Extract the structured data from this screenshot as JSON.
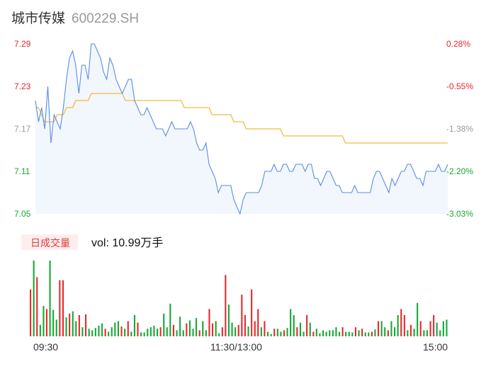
{
  "header": {
    "stock_name": "城市传媒",
    "stock_code": "600229.SH"
  },
  "colors": {
    "up": "#e8282b",
    "down": "#16a836",
    "price_line": "#5b8de0",
    "avg_line": "#f4bb3c",
    "area_fill": "#f2f6fd",
    "neutral_label": "#999999"
  },
  "chart_data": {
    "type": "line",
    "prev_close": 7.2,
    "y_axis_left": [
      "7.29",
      "7.23",
      "7.17",
      "7.11",
      "7.05"
    ],
    "y_axis_right": [
      "0.28%",
      "-0.55%",
      "-1.38%",
      "-2.20%",
      "-3.03%"
    ],
    "ylim": [
      7.05,
      7.29
    ],
    "x_ticks": [
      "09:30",
      "11:30/13:00",
      "15:00"
    ],
    "series": [
      {
        "key": "price",
        "values": [
          7.21,
          7.18,
          7.2,
          7.17,
          7.23,
          7.15,
          7.19,
          7.18,
          7.17,
          7.2,
          7.24,
          7.27,
          7.28,
          7.26,
          7.22,
          7.26,
          7.26,
          7.24,
          7.29,
          7.29,
          7.28,
          7.27,
          7.25,
          7.24,
          7.27,
          7.26,
          7.24,
          7.23,
          7.22,
          7.23,
          7.24,
          7.24,
          7.21,
          7.2,
          7.19,
          7.19,
          7.2,
          7.19,
          7.18,
          7.17,
          7.17,
          7.17,
          7.16,
          7.17,
          7.18,
          7.17,
          7.17,
          7.17,
          7.17,
          7.17,
          7.18,
          7.17,
          7.15,
          7.14,
          7.14,
          7.15,
          7.12,
          7.11,
          7.1,
          7.08,
          7.09,
          7.09,
          7.09,
          7.09,
          7.07,
          7.06,
          7.05,
          7.07,
          7.08,
          7.08,
          7.08,
          7.08,
          7.08,
          7.09,
          7.11,
          7.11,
          7.11,
          7.12,
          7.11,
          7.11,
          7.12,
          7.12,
          7.11,
          7.11,
          7.12,
          7.12,
          7.12,
          7.11,
          7.12,
          7.12,
          7.1,
          7.1,
          7.09,
          7.1,
          7.11,
          7.11,
          7.1,
          7.09,
          7.09,
          7.08,
          7.08,
          7.08,
          7.08,
          7.09,
          7.08,
          7.08,
          7.08,
          7.08,
          7.08,
          7.1,
          7.11,
          7.11,
          7.1,
          7.09,
          7.08,
          7.1,
          7.09,
          7.1,
          7.11,
          7.11,
          7.12,
          7.12,
          7.11,
          7.1,
          7.1,
          7.09,
          7.11,
          7.11,
          7.11,
          7.11,
          7.12,
          7.11,
          7.11,
          7.12
        ]
      },
      {
        "key": "average",
        "values": [
          7.2,
          7.2,
          7.19,
          7.18,
          7.18,
          7.18,
          7.18,
          7.19,
          7.19,
          7.19,
          7.2,
          7.2,
          7.2,
          7.21,
          7.21,
          7.21,
          7.21,
          7.21,
          7.22,
          7.22,
          7.22,
          7.22,
          7.22,
          7.22,
          7.22,
          7.22,
          7.22,
          7.22,
          7.22,
          7.21,
          7.21,
          7.21,
          7.21,
          7.21,
          7.21,
          7.21,
          7.21,
          7.21,
          7.21,
          7.21,
          7.21,
          7.21,
          7.21,
          7.21,
          7.21,
          7.21,
          7.21,
          7.21,
          7.2,
          7.2,
          7.2,
          7.2,
          7.2,
          7.2,
          7.2,
          7.2,
          7.2,
          7.19,
          7.19,
          7.19,
          7.19,
          7.19,
          7.19,
          7.19,
          7.18,
          7.18,
          7.18,
          7.18,
          7.17,
          7.17,
          7.17,
          7.17,
          7.17,
          7.17,
          7.17,
          7.17,
          7.17,
          7.17,
          7.17,
          7.17,
          7.16,
          7.16,
          7.16,
          7.16,
          7.16,
          7.16,
          7.16,
          7.16,
          7.16,
          7.16,
          7.16,
          7.16,
          7.16,
          7.16,
          7.16,
          7.16,
          7.16,
          7.16,
          7.16,
          7.16,
          7.15,
          7.15,
          7.15,
          7.15,
          7.15,
          7.15,
          7.15,
          7.15,
          7.15,
          7.15,
          7.15,
          7.15,
          7.15,
          7.15,
          7.15,
          7.15,
          7.15,
          7.15,
          7.15,
          7.15,
          7.15,
          7.15,
          7.15,
          7.15,
          7.15,
          7.15,
          7.15,
          7.15,
          7.15,
          7.15,
          7.15,
          7.15,
          7.15,
          7.15
        ]
      }
    ],
    "volume": {
      "badge_label": "日成交量",
      "label": "vol: 10.99万手",
      "bars": [
        {
          "v": 0.62,
          "d": "up"
        },
        {
          "v": 1.0,
          "d": "down"
        },
        {
          "v": 0.78,
          "d": "up"
        },
        {
          "v": 0.15,
          "d": "down"
        },
        {
          "v": 0.4,
          "d": "down"
        },
        {
          "v": 0.36,
          "d": "up"
        },
        {
          "v": 1.0,
          "d": "down"
        },
        {
          "v": 0.35,
          "d": "down"
        },
        {
          "v": 0.22,
          "d": "down"
        },
        {
          "v": 0.74,
          "d": "up"
        },
        {
          "v": 0.74,
          "d": "up"
        },
        {
          "v": 0.25,
          "d": "down"
        },
        {
          "v": 0.3,
          "d": "up"
        },
        {
          "v": 0.33,
          "d": "down"
        },
        {
          "v": 0.2,
          "d": "down"
        },
        {
          "v": 0.28,
          "d": "up"
        },
        {
          "v": 0.12,
          "d": "down"
        },
        {
          "v": 0.29,
          "d": "up"
        },
        {
          "v": 0.1,
          "d": "down"
        },
        {
          "v": 0.08,
          "d": "down"
        },
        {
          "v": 0.11,
          "d": "down"
        },
        {
          "v": 0.14,
          "d": "down"
        },
        {
          "v": 0.17,
          "d": "down"
        },
        {
          "v": 0.1,
          "d": "up"
        },
        {
          "v": 0.06,
          "d": "down"
        },
        {
          "v": 0.12,
          "d": "down"
        },
        {
          "v": 0.18,
          "d": "down"
        },
        {
          "v": 0.2,
          "d": "down"
        },
        {
          "v": 0.13,
          "d": "up"
        },
        {
          "v": 0.1,
          "d": "down"
        },
        {
          "v": 0.2,
          "d": "up"
        },
        {
          "v": 0.06,
          "d": "down"
        },
        {
          "v": 0.28,
          "d": "down"
        },
        {
          "v": 0.18,
          "d": "up"
        },
        {
          "v": 0.05,
          "d": "down"
        },
        {
          "v": 0.05,
          "d": "down"
        },
        {
          "v": 0.1,
          "d": "down"
        },
        {
          "v": 0.12,
          "d": "down"
        },
        {
          "v": 0.14,
          "d": "down"
        },
        {
          "v": 0.1,
          "d": "down"
        },
        {
          "v": 0.12,
          "d": "up"
        },
        {
          "v": 0.3,
          "d": "down"
        },
        {
          "v": 0.12,
          "d": "down"
        },
        {
          "v": 0.43,
          "d": "down"
        },
        {
          "v": 0.15,
          "d": "up"
        },
        {
          "v": 0.08,
          "d": "down"
        },
        {
          "v": 0.26,
          "d": "down"
        },
        {
          "v": 0.08,
          "d": "down"
        },
        {
          "v": 0.17,
          "d": "up"
        },
        {
          "v": 0.21,
          "d": "down"
        },
        {
          "v": 0.1,
          "d": "down"
        },
        {
          "v": 0.24,
          "d": "down"
        },
        {
          "v": 0.08,
          "d": "up"
        },
        {
          "v": 0.2,
          "d": "down"
        },
        {
          "v": 0.08,
          "d": "down"
        },
        {
          "v": 0.36,
          "d": "up"
        },
        {
          "v": 0.17,
          "d": "up"
        },
        {
          "v": 0.2,
          "d": "down"
        },
        {
          "v": 0.04,
          "d": "down"
        },
        {
          "v": 0.12,
          "d": "up"
        },
        {
          "v": 0.81,
          "d": "up"
        },
        {
          "v": 0.42,
          "d": "down"
        },
        {
          "v": 0.18,
          "d": "down"
        },
        {
          "v": 0.12,
          "d": "down"
        },
        {
          "v": 0.15,
          "d": "up"
        },
        {
          "v": 0.55,
          "d": "up"
        },
        {
          "v": 0.28,
          "d": "up"
        },
        {
          "v": 0.13,
          "d": "down"
        },
        {
          "v": 0.62,
          "d": "up"
        },
        {
          "v": 0.2,
          "d": "up"
        },
        {
          "v": 0.36,
          "d": "up"
        },
        {
          "v": 0.12,
          "d": "down"
        },
        {
          "v": 0.2,
          "d": "up"
        },
        {
          "v": 0.06,
          "d": "down"
        },
        {
          "v": 0.03,
          "d": "down"
        },
        {
          "v": 0.1,
          "d": "up"
        },
        {
          "v": 0.1,
          "d": "down"
        },
        {
          "v": 0.06,
          "d": "down"
        },
        {
          "v": 0.08,
          "d": "up"
        },
        {
          "v": 0.11,
          "d": "down"
        },
        {
          "v": 0.36,
          "d": "down"
        },
        {
          "v": 0.28,
          "d": "down"
        },
        {
          "v": 0.12,
          "d": "up"
        },
        {
          "v": 0.18,
          "d": "down"
        },
        {
          "v": 0.06,
          "d": "down"
        },
        {
          "v": 0.28,
          "d": "up"
        },
        {
          "v": 0.18,
          "d": "down"
        },
        {
          "v": 0.06,
          "d": "up"
        },
        {
          "v": 0.1,
          "d": "down"
        },
        {
          "v": 0.04,
          "d": "down"
        },
        {
          "v": 0.08,
          "d": "down"
        },
        {
          "v": 0.06,
          "d": "down"
        },
        {
          "v": 0.08,
          "d": "down"
        },
        {
          "v": 0.08,
          "d": "down"
        },
        {
          "v": 0.12,
          "d": "down"
        },
        {
          "v": 0.06,
          "d": "down"
        },
        {
          "v": 0.12,
          "d": "up"
        },
        {
          "v": 0.06,
          "d": "down"
        },
        {
          "v": 0.06,
          "d": "down"
        },
        {
          "v": 0.05,
          "d": "down"
        },
        {
          "v": 0.12,
          "d": "up"
        },
        {
          "v": 0.08,
          "d": "down"
        },
        {
          "v": 0.1,
          "d": "up"
        },
        {
          "v": 0.05,
          "d": "down"
        },
        {
          "v": 0.05,
          "d": "down"
        },
        {
          "v": 0.06,
          "d": "up"
        },
        {
          "v": 0.09,
          "d": "down"
        },
        {
          "v": 0.2,
          "d": "up"
        },
        {
          "v": 0.2,
          "d": "down"
        },
        {
          "v": 0.12,
          "d": "down"
        },
        {
          "v": 0.08,
          "d": "up"
        },
        {
          "v": 0.2,
          "d": "down"
        },
        {
          "v": 0.12,
          "d": "down"
        },
        {
          "v": 0.28,
          "d": "down"
        },
        {
          "v": 0.36,
          "d": "up"
        },
        {
          "v": 0.28,
          "d": "up"
        },
        {
          "v": 0.08,
          "d": "down"
        },
        {
          "v": 0.15,
          "d": "up"
        },
        {
          "v": 0.1,
          "d": "down"
        },
        {
          "v": 0.44,
          "d": "down"
        },
        {
          "v": 0.2,
          "d": "up"
        },
        {
          "v": 0.08,
          "d": "down"
        },
        {
          "v": 0.08,
          "d": "down"
        },
        {
          "v": 0.2,
          "d": "up"
        },
        {
          "v": 0.28,
          "d": "up"
        },
        {
          "v": 0.18,
          "d": "down"
        },
        {
          "v": 0.08,
          "d": "down"
        },
        {
          "v": 0.2,
          "d": "down"
        },
        {
          "v": 0.22,
          "d": "down"
        }
      ]
    }
  }
}
